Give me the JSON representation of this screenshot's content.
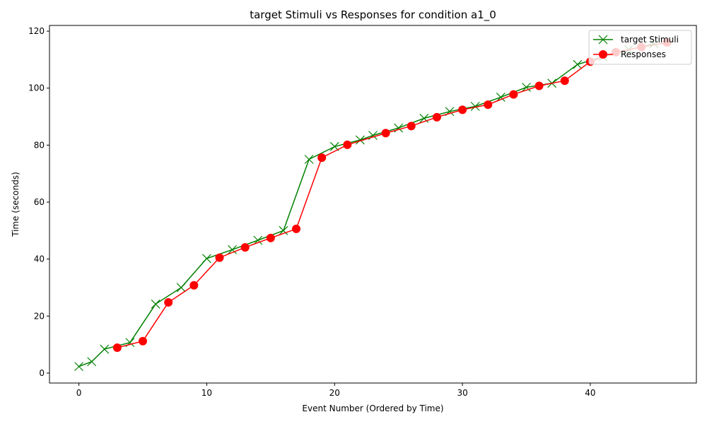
{
  "chart_data": {
    "type": "line",
    "title": "target Stimuli vs Responses for condition a1_0",
    "xlabel": "Event Number (Ordered by Time)",
    "ylabel": "Time (seconds)",
    "xlim": [
      -2.3,
      48.3
    ],
    "ylim": [
      -3.5,
      122.0
    ],
    "xticks": [
      0,
      10,
      20,
      30,
      40
    ],
    "yticks": [
      0,
      20,
      40,
      60,
      80,
      100,
      120
    ],
    "grid": false,
    "legend_position": "top-right",
    "series": [
      {
        "name": "target Stimuli",
        "color": "#008000",
        "marker": "x",
        "x": [
          0,
          1,
          2,
          4,
          6,
          8,
          10,
          12,
          14,
          16,
          18,
          20,
          22,
          23,
          25,
          27,
          29,
          31,
          33,
          35,
          37,
          39,
          41,
          43,
          45
        ],
        "y": [
          2.3,
          4.0,
          8.4,
          10.7,
          24.2,
          30.0,
          40.2,
          43.3,
          46.6,
          50.0,
          75.0,
          79.5,
          81.8,
          83.4,
          86.0,
          89.4,
          91.8,
          93.6,
          96.8,
          100.3,
          101.7,
          108.3,
          111.0,
          113.5,
          115.6
        ]
      },
      {
        "name": "Responses",
        "color": "#ff0000",
        "marker": "o",
        "x": [
          3,
          5,
          7,
          9,
          11,
          13,
          15,
          17,
          19,
          21,
          24,
          26,
          28,
          30,
          32,
          34,
          36,
          38,
          40,
          42,
          44,
          46
        ],
        "y": [
          8.9,
          11.2,
          24.8,
          30.8,
          40.5,
          44.1,
          47.4,
          50.6,
          75.6,
          80.1,
          84.2,
          86.7,
          89.8,
          92.4,
          94.2,
          97.8,
          100.8,
          102.6,
          109.3,
          112.6,
          114.4,
          116.0
        ]
      }
    ]
  }
}
